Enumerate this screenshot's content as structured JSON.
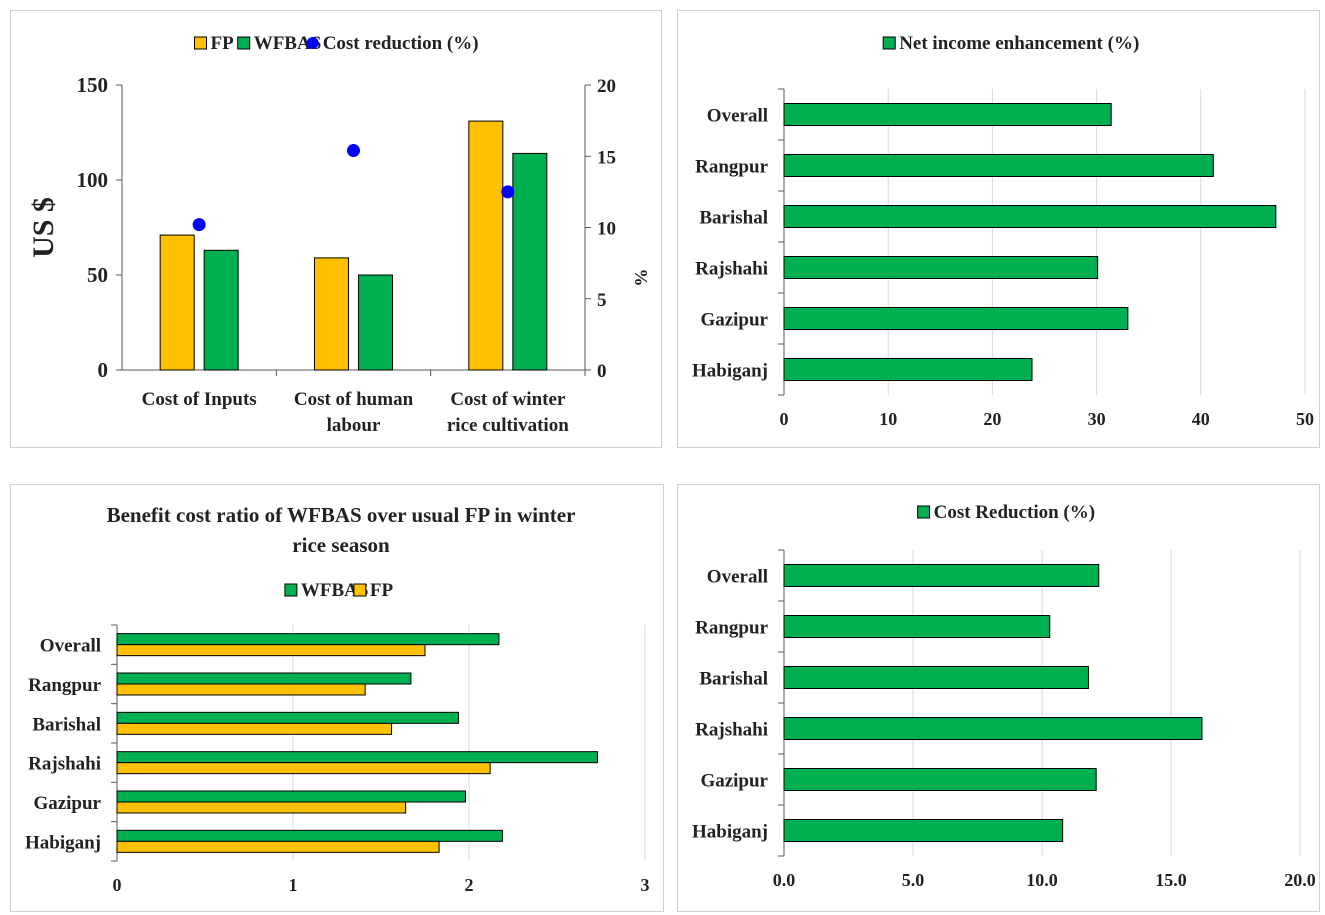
{
  "colors": {
    "fp": "#FFC000",
    "wfbas": "#00B050",
    "dot": "#0000FF",
    "axis": "#595959",
    "grid": "#d9d9d9"
  },
  "chart_data": [
    {
      "type": "bar",
      "title": "",
      "ylabel": "US $",
      "y2label": "%",
      "categories": [
        "Cost of Inputs",
        "Cost of human labour",
        "Cost of winter rice cultivation"
      ],
      "category_lines": [
        [
          "Cost of Inputs"
        ],
        [
          "Cost of human",
          "labour"
        ],
        [
          "Cost of winter",
          "rice cultivation"
        ]
      ],
      "series": [
        {
          "name": "FP",
          "values": [
            71,
            59,
            131
          ],
          "color": "#FFC000",
          "axis": "left",
          "kind": "bar"
        },
        {
          "name": "WFBAS",
          "values": [
            63,
            50,
            114
          ],
          "color": "#00B050",
          "axis": "left",
          "kind": "bar"
        },
        {
          "name": "Cost reduction (%)",
          "values": [
            10.2,
            15.4,
            12.5
          ],
          "color": "#0000FF",
          "axis": "right",
          "kind": "scatter"
        }
      ],
      "ylim": [
        0,
        150
      ],
      "yticks": [
        "0",
        "50",
        "100",
        "150"
      ],
      "y2lim": [
        0,
        20
      ],
      "y2ticks": [
        "0",
        "5",
        "10",
        "15",
        "20"
      ],
      "legend": "top",
      "grid": false
    },
    {
      "type": "bar",
      "orientation": "horizontal",
      "title": "",
      "categories": [
        "Overall",
        "Rangpur",
        "Barishal",
        "Rajshahi",
        "Gazipur",
        "Habiganj"
      ],
      "series": [
        {
          "name": "Net income enhancement (%)",
          "values": [
            31.4,
            41.2,
            47.2,
            30.1,
            33.0,
            23.8
          ],
          "color": "#00B050"
        }
      ],
      "xlim": [
        0,
        50
      ],
      "xticks": [
        "0",
        "10",
        "20",
        "30",
        "40",
        "50"
      ],
      "legend": "top",
      "grid": true
    },
    {
      "type": "bar",
      "orientation": "horizontal",
      "title": "Benefit cost ratio of WFBAS over usual FP in winter rice season",
      "title_lines": [
        "Benefit cost ratio of WFBAS over usual FP in winter",
        "rice season"
      ],
      "categories": [
        "Overall",
        "Rangpur",
        "Barishal",
        "Rajshahi",
        "Gazipur",
        "Habiganj"
      ],
      "series": [
        {
          "name": "WFBAS",
          "values": [
            2.17,
            1.67,
            1.94,
            2.73,
            1.98,
            2.19
          ],
          "color": "#00B050"
        },
        {
          "name": "FP",
          "values": [
            1.75,
            1.41,
            1.56,
            2.12,
            1.64,
            1.83
          ],
          "color": "#FFC000"
        }
      ],
      "xlim": [
        0,
        3
      ],
      "xticks": [
        "0",
        "1",
        "2",
        "3"
      ],
      "legend": "top",
      "grid": true
    },
    {
      "type": "bar",
      "orientation": "horizontal",
      "title": "",
      "categories": [
        "Overall",
        "Rangpur",
        "Barishal",
        "Rajshahi",
        "Gazipur",
        "Habiganj"
      ],
      "series": [
        {
          "name": "Cost Reduction (%)",
          "values": [
            12.2,
            10.3,
            11.8,
            16.2,
            12.1,
            10.8
          ],
          "color": "#00B050"
        }
      ],
      "xlim": [
        0,
        20
      ],
      "xticks": [
        "0.0",
        "5.0",
        "10.0",
        "15.0",
        "20.0"
      ],
      "legend": "top",
      "grid": true
    }
  ]
}
